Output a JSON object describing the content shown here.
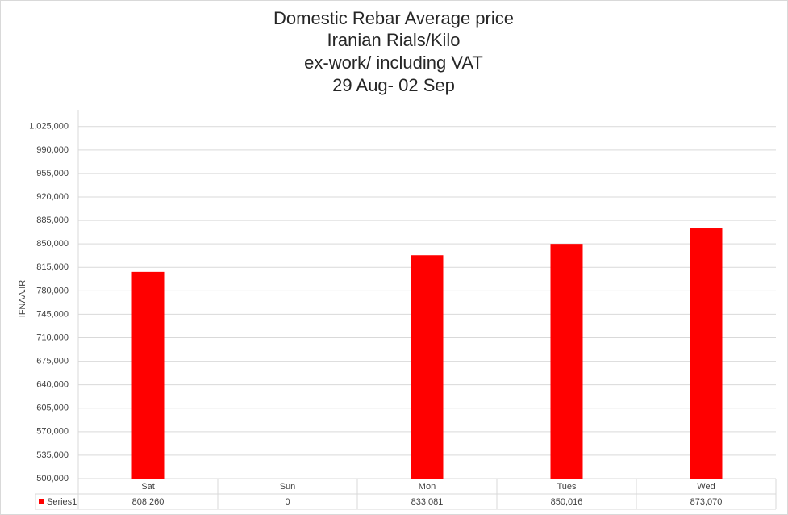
{
  "chart_data": {
    "type": "bar",
    "title": [
      "Domestic Rebar Average price",
      "Iranian Rials/Kilo",
      "ex-work/ including VAT",
      "29 Aug- 02 Sep"
    ],
    "y_label": "IFNAA.IR",
    "categories": [
      "Sat",
      "Sun",
      "Mon",
      "Tues",
      "Wed"
    ],
    "series": [
      {
        "name": "Series1",
        "color": "#ff0000",
        "values": [
          808260,
          0,
          833081,
          850016,
          873070
        ],
        "value_labels": [
          "808,260",
          "0",
          "833,081",
          "850,016",
          "873,070"
        ]
      }
    ],
    "ylim": [
      500000,
      1050000
    ],
    "yticks": [
      {
        "value": 500000,
        "label": "500,000"
      },
      {
        "value": 535000,
        "label": "535,000"
      },
      {
        "value": 570000,
        "label": "570,000"
      },
      {
        "value": 605000,
        "label": "605,000"
      },
      {
        "value": 640000,
        "label": "640,000"
      },
      {
        "value": 675000,
        "label": "675,000"
      },
      {
        "value": 710000,
        "label": "710,000"
      },
      {
        "value": 745000,
        "label": "745,000"
      },
      {
        "value": 780000,
        "label": "780,000"
      },
      {
        "value": 815000,
        "label": "815,000"
      },
      {
        "value": 850000,
        "label": "850,000"
      },
      {
        "value": 885000,
        "label": "885,000"
      },
      {
        "value": 920000,
        "label": "920,000"
      },
      {
        "value": 955000,
        "label": "955,000"
      },
      {
        "value": 990000,
        "label": "990,000"
      },
      {
        "value": 1025000,
        "label": "1,025,000"
      }
    ],
    "grid": true
  }
}
